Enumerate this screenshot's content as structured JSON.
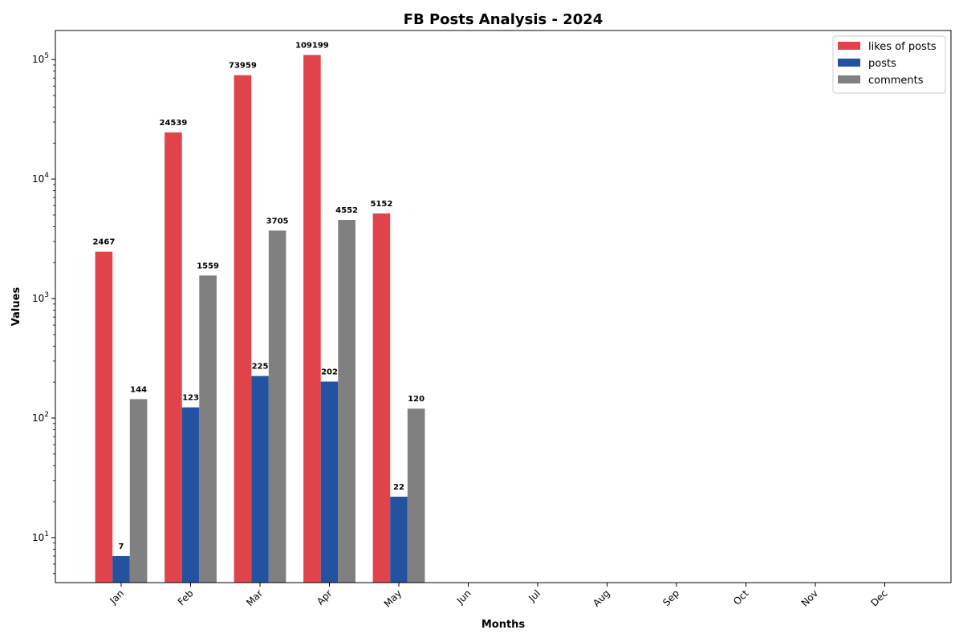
{
  "chart_data": {
    "type": "bar",
    "title": "FB Posts Analysis - 2024",
    "xlabel": "Months",
    "ylabel": "Values",
    "yscale": "log",
    "ylim": [
      4.2,
      175000
    ],
    "ytick_values": [
      10,
      100,
      1000,
      10000,
      100000
    ],
    "categories": [
      "Jan",
      "Feb",
      "Mar",
      "Apr",
      "May",
      "Jun",
      "Jul",
      "Aug",
      "Sep",
      "Oct",
      "Nov",
      "Dec"
    ],
    "series": [
      {
        "name": "likes of posts",
        "color": "#e0444a",
        "values": [
          2467,
          24539,
          73959,
          109199,
          5152,
          null,
          null,
          null,
          null,
          null,
          null,
          null
        ]
      },
      {
        "name": "posts",
        "color": "#2252a0",
        "values": [
          7,
          123,
          225,
          202,
          22,
          null,
          null,
          null,
          null,
          null,
          null,
          null
        ]
      },
      {
        "name": "comments",
        "color": "#808080",
        "values": [
          144,
          1559,
          3705,
          4552,
          120,
          null,
          null,
          null,
          null,
          null,
          null,
          null
        ]
      }
    ],
    "legend_position": "top-right",
    "grid": false
  }
}
